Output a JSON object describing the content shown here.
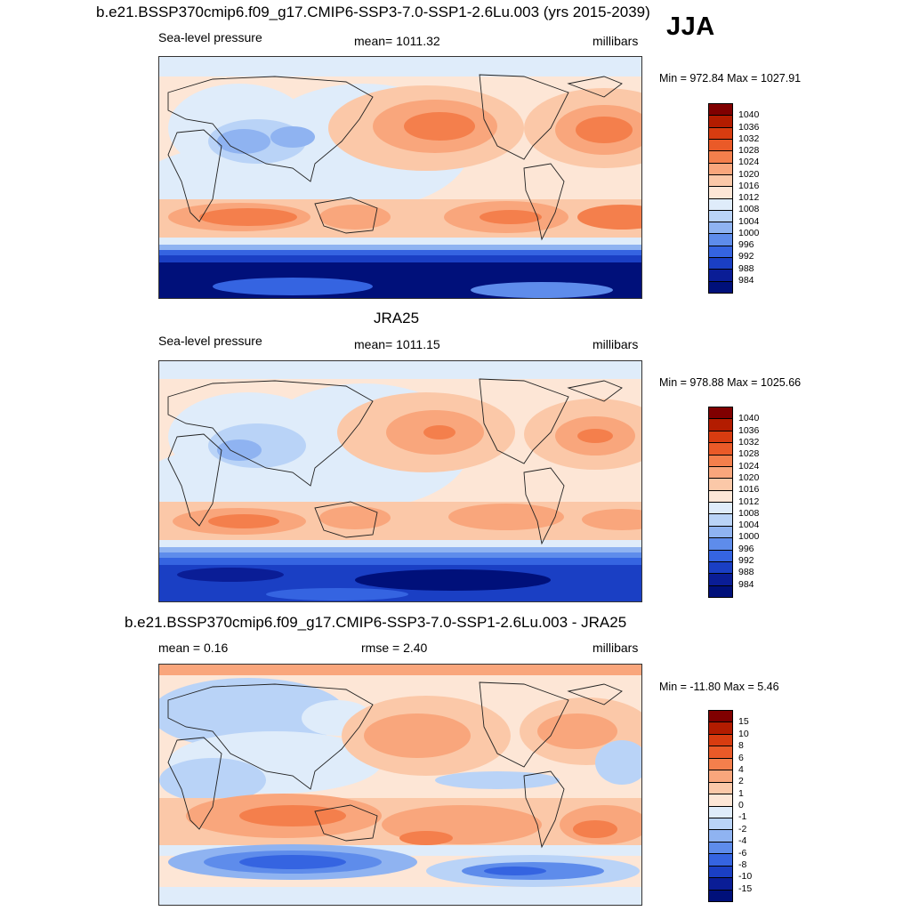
{
  "season": "JJA",
  "units": "millibars",
  "panels": [
    {
      "id": "model",
      "title": "b.e21.BSSP370cmip6.f09_g17.CMIP6-SSP3-7.0-SSP1-2.6Lu.003 (yrs 2015-2039)",
      "left_label": "Sea-level pressure",
      "center_label": "mean= 1011.32",
      "right_label": "millibars",
      "minmax": "Min = 972.84 Max = 1027.91",
      "scale": "pressure"
    },
    {
      "id": "obs",
      "title": "JRA25",
      "left_label": "Sea-level pressure",
      "center_label": "mean= 1011.15",
      "right_label": "millibars",
      "minmax": "Min = 978.88 Max = 1025.66",
      "scale": "pressure"
    },
    {
      "id": "diff",
      "title": "b.e21.BSSP370cmip6.f09_g17.CMIP6-SSP3-7.0-SSP1-2.6Lu.003 - JRA25",
      "left_label": "mean =   0.16",
      "center_label": "rmse =   2.40",
      "right_label": "millibars",
      "minmax": "Min = -11.80 Max =   5.46",
      "scale": "difference"
    }
  ],
  "colorbars": {
    "pressure": {
      "labels": [
        "1040",
        "1036",
        "1032",
        "1028",
        "1024",
        "1020",
        "1016",
        "1012",
        "1008",
        "1004",
        "1000",
        "996",
        "992",
        "988",
        "984"
      ],
      "colors": [
        "#800000",
        "#b31c00",
        "#d83c10",
        "#ea5a28",
        "#f47f4c",
        "#f9a67c",
        "#fbc8a8",
        "#fde6d6",
        "#dfecfa",
        "#b9d3f7",
        "#8fb3f1",
        "#5e8ceb",
        "#3564e1",
        "#1a3fc4",
        "#0a1d96",
        "#00107a"
      ]
    },
    "difference": {
      "labels": [
        "15",
        "10",
        "8",
        "6",
        "4",
        "2",
        "1",
        "0",
        "-1",
        "-2",
        "-4",
        "-6",
        "-8",
        "-10",
        "-15"
      ],
      "colors": [
        "#800000",
        "#b31c00",
        "#d83c10",
        "#ea5a28",
        "#f47f4c",
        "#f9a67c",
        "#fbc8a8",
        "#fde6d6",
        "#dfecfa",
        "#b9d3f7",
        "#8fb3f1",
        "#5e8ceb",
        "#3564e1",
        "#1a3fc4",
        "#0a1d96",
        "#00107a"
      ]
    }
  }
}
